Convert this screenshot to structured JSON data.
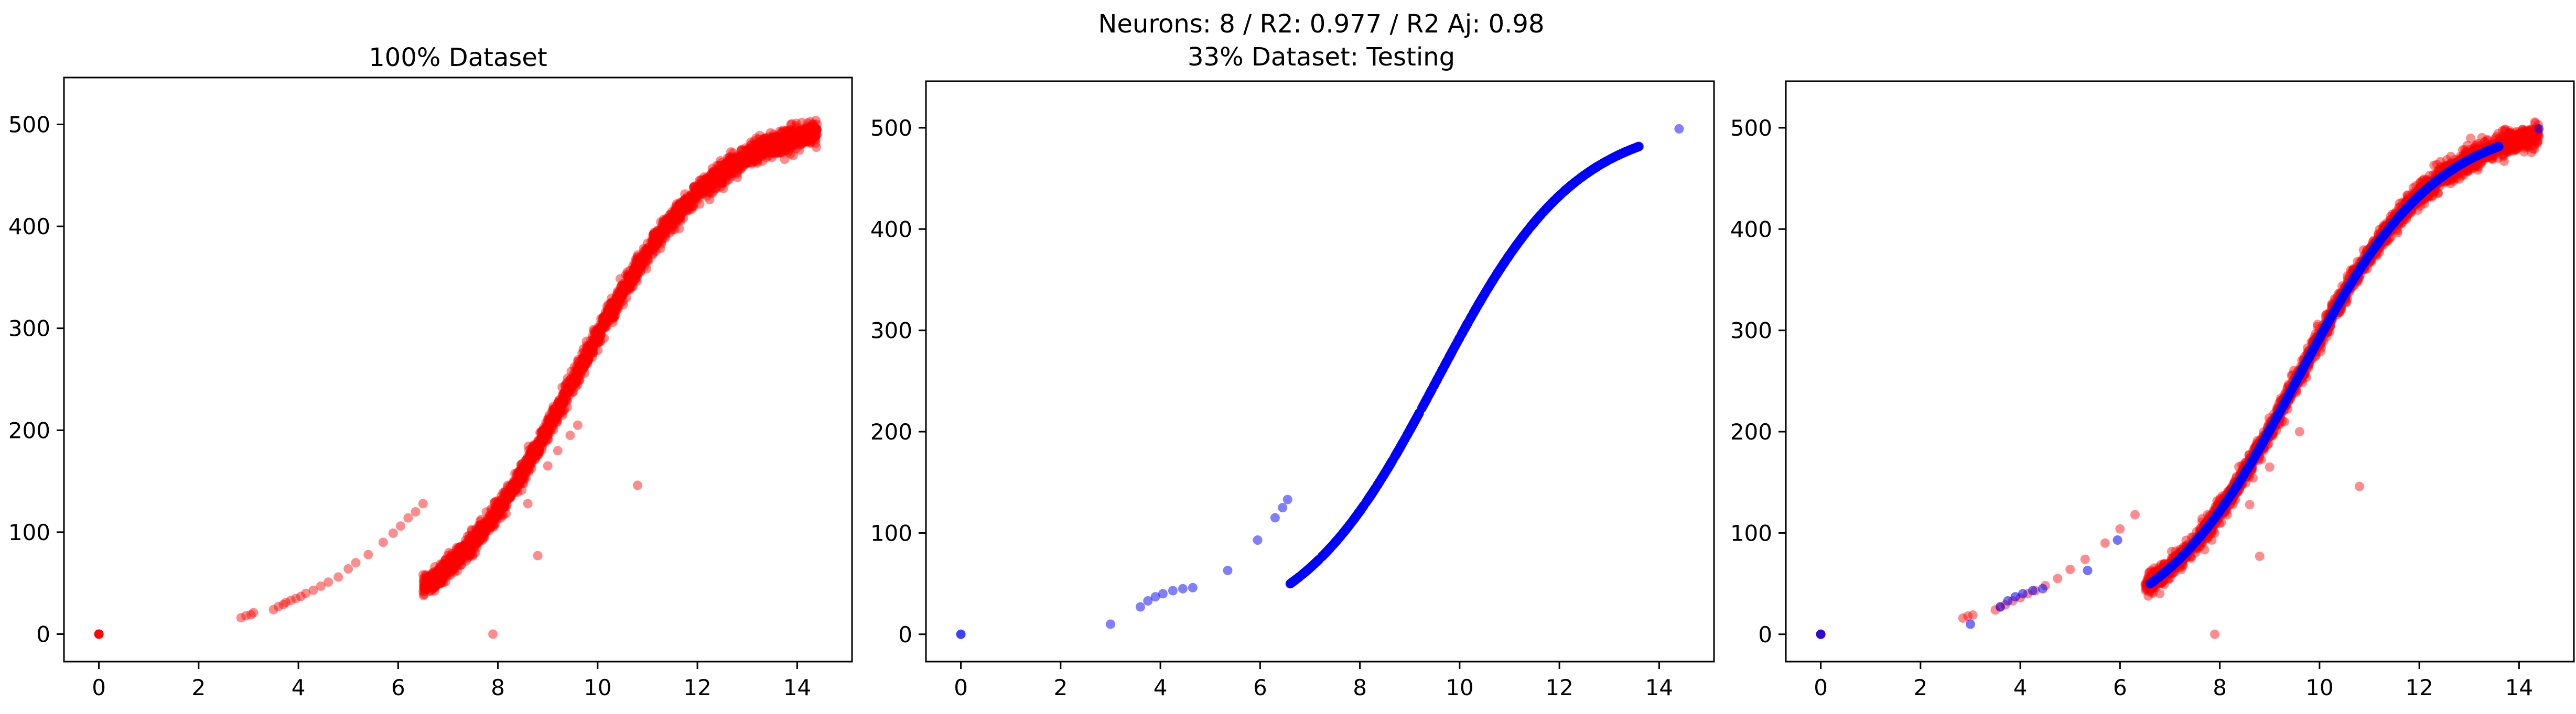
{
  "figure": {
    "suptitle_line1": "Neurons: 8 / R2: 0.977 / R2 Aj: 0.98",
    "suptitle_line2": "33% Dataset: Testing"
  },
  "chart_data": [
    {
      "type": "scatter",
      "title": "100% Dataset",
      "xlabel": "",
      "ylabel": "",
      "xlim": [
        -0.7,
        15.1
      ],
      "ylim": [
        -27,
        546
      ],
      "xticks": [
        0,
        2,
        4,
        6,
        8,
        10,
        12,
        14
      ],
      "yticks": [
        0,
        100,
        200,
        300,
        400,
        500
      ],
      "grid": false,
      "legend": "none",
      "series": [
        {
          "color": "#ff0000",
          "alpha": 0.45,
          "generator": "measured",
          "points": [
            [
              0,
              0
            ],
            [
              0,
              0
            ],
            [
              0,
              0
            ],
            [
              0,
              0
            ],
            [
              0,
              0
            ],
            [
              0,
              0
            ],
            [
              2.85,
              16
            ],
            [
              2.95,
              18
            ],
            [
              3.05,
              19
            ],
            [
              3.1,
              21
            ],
            [
              3.5,
              24
            ],
            [
              3.6,
              27
            ],
            [
              3.7,
              29
            ],
            [
              3.75,
              31
            ],
            [
              3.85,
              33
            ],
            [
              3.95,
              35
            ],
            [
              4.05,
              37
            ],
            [
              4.15,
              40
            ],
            [
              4.3,
              43
            ],
            [
              4.45,
              47
            ],
            [
              4.6,
              51
            ],
            [
              4.8,
              56
            ],
            [
              5.0,
              64
            ],
            [
              5.15,
              70
            ],
            [
              5.4,
              78
            ],
            [
              5.7,
              90
            ],
            [
              5.9,
              99
            ],
            [
              6.05,
              106
            ],
            [
              6.2,
              114
            ],
            [
              6.35,
              120
            ],
            [
              6.5,
              128
            ],
            [
              7.9,
              0
            ],
            [
              8.8,
              77
            ],
            [
              8.6,
              128
            ],
            [
              10.8,
              146
            ],
            [
              9.0,
              165
            ],
            [
              9.2,
              180
            ],
            [
              9.6,
              205
            ],
            [
              9.3,
              215
            ],
            [
              9.45,
              195
            ]
          ]
        }
      ]
    },
    {
      "type": "scatter",
      "title": "",
      "xlabel": "",
      "ylabel": "",
      "xlim": [
        -0.7,
        15.1
      ],
      "ylim": [
        -27,
        546
      ],
      "xticks": [
        0,
        2,
        4,
        6,
        8,
        10,
        12,
        14
      ],
      "yticks": [
        0,
        100,
        200,
        300,
        400,
        500
      ],
      "grid": false,
      "legend": "none",
      "series": [
        {
          "color": "#0000ff",
          "alpha": 0.5,
          "generator": "fitted",
          "points": [
            [
              0,
              0
            ],
            [
              0,
              0
            ],
            [
              3.0,
              10
            ],
            [
              3.6,
              27
            ],
            [
              3.75,
              33
            ],
            [
              3.9,
              37
            ],
            [
              4.05,
              40
            ],
            [
              4.25,
              43
            ],
            [
              4.45,
              45
            ],
            [
              4.65,
              46
            ],
            [
              5.35,
              63
            ],
            [
              5.95,
              93
            ],
            [
              6.3,
              115
            ],
            [
              6.45,
              125
            ],
            [
              6.55,
              133
            ],
            [
              14.4,
              499
            ]
          ]
        }
      ]
    },
    {
      "type": "scatter",
      "title": "",
      "xlabel": "",
      "ylabel": "",
      "xlim": [
        -0.7,
        15.1
      ],
      "ylim": [
        -27,
        546
      ],
      "xticks": [
        0,
        2,
        4,
        6,
        8,
        10,
        12,
        14
      ],
      "yticks": [
        0,
        100,
        200,
        300,
        400,
        500
      ],
      "grid": false,
      "legend": "none",
      "series": [
        {
          "color": "#ff0000",
          "alpha": 0.45,
          "generator": "measured",
          "points": [
            [
              0,
              0
            ],
            [
              0,
              0
            ],
            [
              0,
              0
            ],
            [
              2.85,
              16
            ],
            [
              2.95,
              18
            ],
            [
              3.05,
              19
            ],
            [
              3.5,
              24
            ],
            [
              3.6,
              27
            ],
            [
              3.7,
              29
            ],
            [
              3.85,
              33
            ],
            [
              4.0,
              36
            ],
            [
              4.15,
              40
            ],
            [
              4.3,
              43
            ],
            [
              4.5,
              48
            ],
            [
              4.75,
              55
            ],
            [
              5.0,
              64
            ],
            [
              5.3,
              74
            ],
            [
              5.7,
              90
            ],
            [
              6.0,
              104
            ],
            [
              6.3,
              118
            ],
            [
              7.9,
              0
            ],
            [
              8.8,
              77
            ],
            [
              8.6,
              128
            ],
            [
              10.8,
              146
            ],
            [
              9.0,
              165
            ],
            [
              9.3,
              210
            ],
            [
              9.6,
              200
            ]
          ]
        },
        {
          "color": "#0000ff",
          "alpha": 0.55,
          "generator": "fitted",
          "points": [
            [
              0,
              0
            ],
            [
              0,
              0
            ],
            [
              3.0,
              10
            ],
            [
              3.6,
              27
            ],
            [
              3.75,
              33
            ],
            [
              3.9,
              37
            ],
            [
              4.05,
              40
            ],
            [
              4.25,
              43
            ],
            [
              4.45,
              45
            ],
            [
              5.35,
              63
            ],
            [
              5.95,
              93
            ],
            [
              14.4,
              499
            ]
          ]
        }
      ]
    }
  ]
}
